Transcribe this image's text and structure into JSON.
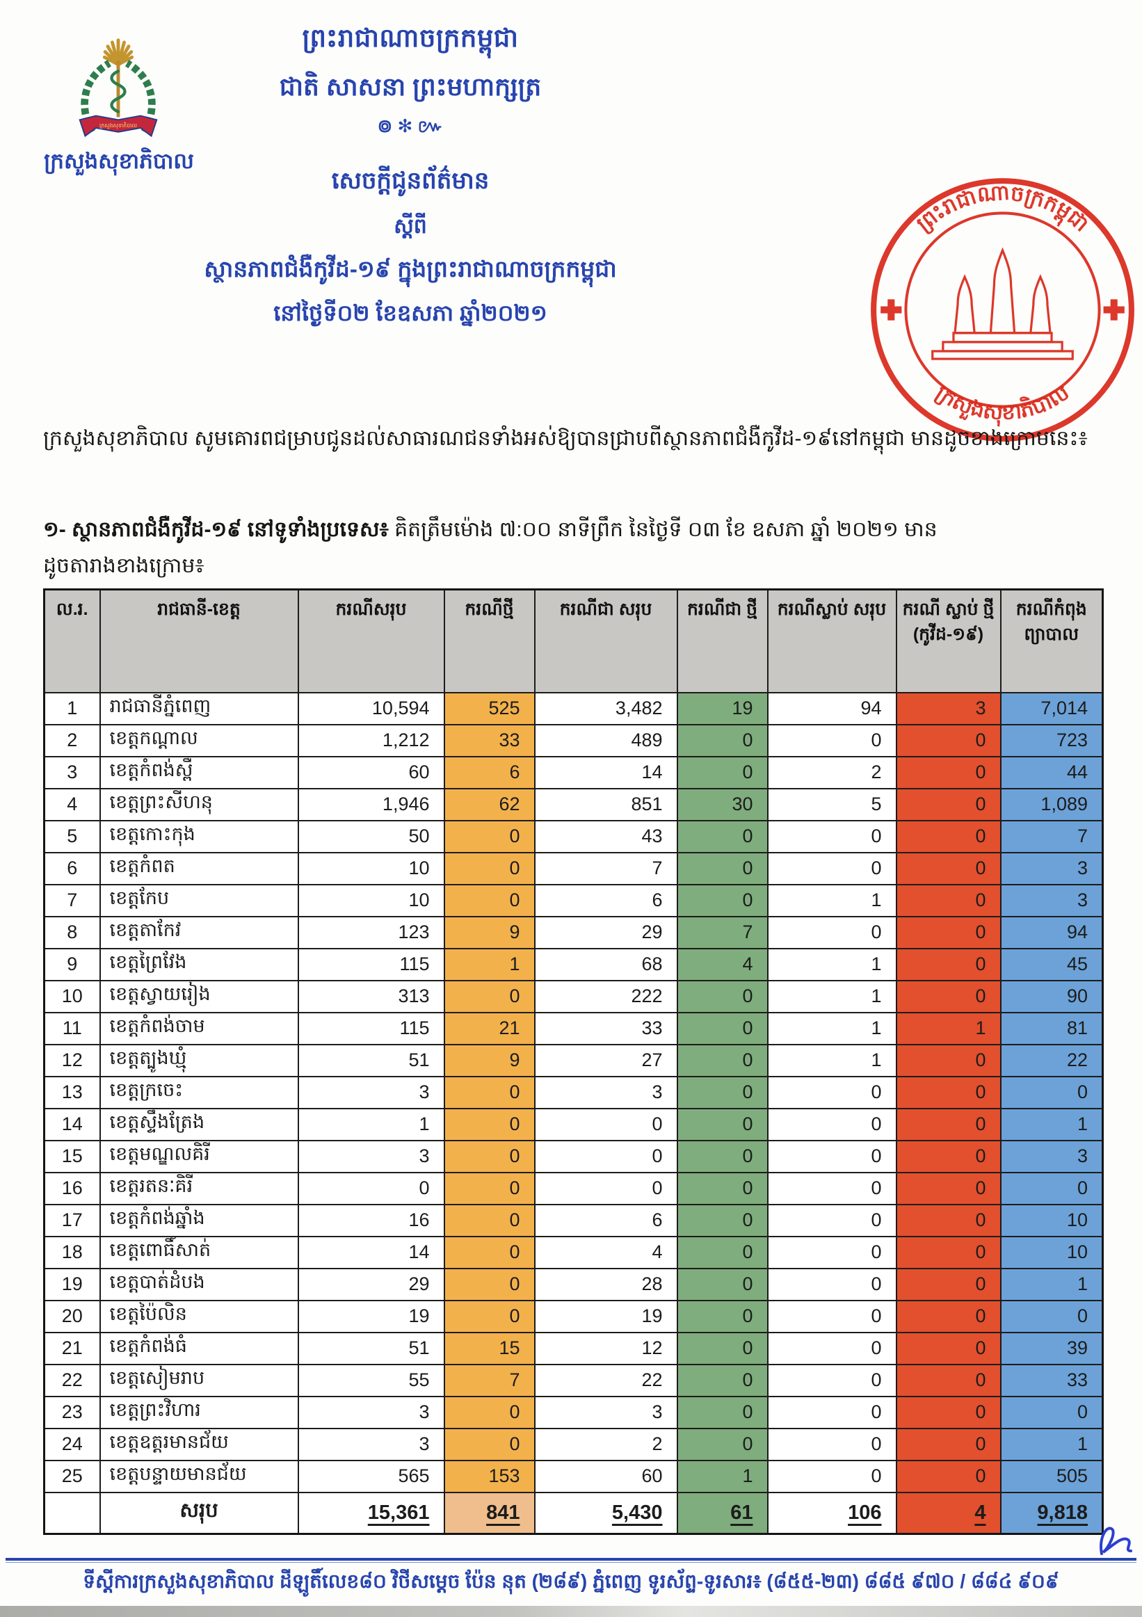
{
  "document": {
    "kingdom_motto_line1": "ព្រះរាជាណាចក្រកម្ពុជា",
    "kingdom_motto_line2": "ជាតិ សាសនា ព្រះមហាក្សត្រ",
    "motto_ornament": "៙ ✻ ៚",
    "ministry_name": "ក្រសួងសុខាភិបាល",
    "title_line1": "សេចក្ដីជូនព័ត៌មាន",
    "title_line2": "ស្ដីពី",
    "title_line3": "ស្ថានភាពជំងឺកូវីដ-១៩ ក្នុងព្រះរាជាណាចក្រកម្ពុជា",
    "title_line4": "នៅថ្ងៃទី០២ ខែឧសភា ឆ្នាំ២០២១"
  },
  "logo": {
    "banner_text": "ក្រសួងសុខាភិបាល"
  },
  "stamp": {
    "top_text": "ព្រះរាជាណាចក្រកម្ពុជា",
    "bottom_text": "ក្រសួងសុខាភិបាល",
    "color": "#DA2A1C"
  },
  "intro": {
    "paragraph": "ក្រសួងសុខាភិបាល សូមគោរពជម្រាបជូនដល់សាធារណជនទាំងអស់ឱ្យបានជ្រាបពីស្ថានភាពជំងឺកូវីដ-១៩នៅកម្ពុជា មានដូចខាងក្រោមនេះ៖",
    "section_no_label": "១- ស្ថានភាពជំងឺកូវីដ-១៩ នៅទូទាំងប្រទេស៖",
    "section_rest": " គិតត្រឹមម៉ោង ៧:០០ នាទីព្រឹក នៃថ្ងៃទី ០៣ ខែ ឧសភា ឆ្នាំ ២០២១ មាន",
    "section_line2": "ដូចតារាងខាងក្រោម៖"
  },
  "table": {
    "headers": {
      "no": "ល.រ.",
      "province": "រាជធានី-ខេត្ត",
      "total_cases": "ករណីសរុប",
      "new_cases": "ករណីថ្មី",
      "recovered_total": "ករណីជា សរុប",
      "recovered_new": "ករណីជា ថ្មី",
      "deaths_total": "ករណីស្លាប់ សរុប",
      "deaths_new": "ករណី ស្លាប់ ថ្មី (កូវីដ-១៩)",
      "in_treatment": "ករណីកំពុង ព្យាបាល"
    },
    "rows": [
      {
        "no": "1",
        "province": "រាជធានីភ្នំពេញ",
        "total_cases": "10,594",
        "new_cases": "525",
        "recovered_total": "3,482",
        "recovered_new": "19",
        "deaths_total": "94",
        "deaths_new": "3",
        "in_treatment": "7,014"
      },
      {
        "no": "2",
        "province": "ខេត្តកណ្ដាល",
        "total_cases": "1,212",
        "new_cases": "33",
        "recovered_total": "489",
        "recovered_new": "0",
        "deaths_total": "0",
        "deaths_new": "0",
        "in_treatment": "723"
      },
      {
        "no": "3",
        "province": "ខេត្តកំពង់ស្ពឺ",
        "total_cases": "60",
        "new_cases": "6",
        "recovered_total": "14",
        "recovered_new": "0",
        "deaths_total": "2",
        "deaths_new": "0",
        "in_treatment": "44"
      },
      {
        "no": "4",
        "province": "ខេត្តព្រះសីហនុ",
        "total_cases": "1,946",
        "new_cases": "62",
        "recovered_total": "851",
        "recovered_new": "30",
        "deaths_total": "5",
        "deaths_new": "0",
        "in_treatment": "1,089"
      },
      {
        "no": "5",
        "province": "ខេត្តកោះកុង",
        "total_cases": "50",
        "new_cases": "0",
        "recovered_total": "43",
        "recovered_new": "0",
        "deaths_total": "0",
        "deaths_new": "0",
        "in_treatment": "7"
      },
      {
        "no": "6",
        "province": "ខេត្តកំពត",
        "total_cases": "10",
        "new_cases": "0",
        "recovered_total": "7",
        "recovered_new": "0",
        "deaths_total": "0",
        "deaths_new": "0",
        "in_treatment": "3"
      },
      {
        "no": "7",
        "province": "ខេត្តកែប",
        "total_cases": "10",
        "new_cases": "0",
        "recovered_total": "6",
        "recovered_new": "0",
        "deaths_total": "1",
        "deaths_new": "0",
        "in_treatment": "3"
      },
      {
        "no": "8",
        "province": "ខេត្តតាកែវ",
        "total_cases": "123",
        "new_cases": "9",
        "recovered_total": "29",
        "recovered_new": "7",
        "deaths_total": "0",
        "deaths_new": "0",
        "in_treatment": "94"
      },
      {
        "no": "9",
        "province": "ខេត្តព្រៃវែង",
        "total_cases": "115",
        "new_cases": "1",
        "recovered_total": "68",
        "recovered_new": "4",
        "deaths_total": "1",
        "deaths_new": "0",
        "in_treatment": "45"
      },
      {
        "no": "10",
        "province": "ខេត្តស្វាយរៀង",
        "total_cases": "313",
        "new_cases": "0",
        "recovered_total": "222",
        "recovered_new": "0",
        "deaths_total": "1",
        "deaths_new": "0",
        "in_treatment": "90"
      },
      {
        "no": "11",
        "province": "ខេត្តកំពង់ចាម",
        "total_cases": "115",
        "new_cases": "21",
        "recovered_total": "33",
        "recovered_new": "0",
        "deaths_total": "1",
        "deaths_new": "1",
        "in_treatment": "81"
      },
      {
        "no": "12",
        "province": "ខេត្តត្បូងឃ្មុំ",
        "total_cases": "51",
        "new_cases": "9",
        "recovered_total": "27",
        "recovered_new": "0",
        "deaths_total": "1",
        "deaths_new": "0",
        "in_treatment": "22"
      },
      {
        "no": "13",
        "province": "ខេត្តក្រចេះ",
        "total_cases": "3",
        "new_cases": "0",
        "recovered_total": "3",
        "recovered_new": "0",
        "deaths_total": "0",
        "deaths_new": "0",
        "in_treatment": "0"
      },
      {
        "no": "14",
        "province": "ខេត្តស្ទឹងត្រែង",
        "total_cases": "1",
        "new_cases": "0",
        "recovered_total": "0",
        "recovered_new": "0",
        "deaths_total": "0",
        "deaths_new": "0",
        "in_treatment": "1"
      },
      {
        "no": "15",
        "province": "ខេត្តមណ្ឌលគិរី",
        "total_cases": "3",
        "new_cases": "0",
        "recovered_total": "0",
        "recovered_new": "0",
        "deaths_total": "0",
        "deaths_new": "0",
        "in_treatment": "3"
      },
      {
        "no": "16",
        "province": "ខេត្តរតនៈគិរី",
        "total_cases": "0",
        "new_cases": "0",
        "recovered_total": "0",
        "recovered_new": "0",
        "deaths_total": "0",
        "deaths_new": "0",
        "in_treatment": "0"
      },
      {
        "no": "17",
        "province": "ខេត្តកំពង់ឆ្នាំង",
        "total_cases": "16",
        "new_cases": "0",
        "recovered_total": "6",
        "recovered_new": "0",
        "deaths_total": "0",
        "deaths_new": "0",
        "in_treatment": "10"
      },
      {
        "no": "18",
        "province": "ខេត្តពោធិ៍សាត់",
        "total_cases": "14",
        "new_cases": "0",
        "recovered_total": "4",
        "recovered_new": "0",
        "deaths_total": "0",
        "deaths_new": "0",
        "in_treatment": "10"
      },
      {
        "no": "19",
        "province": "ខេត្តបាត់ដំបង",
        "total_cases": "29",
        "new_cases": "0",
        "recovered_total": "28",
        "recovered_new": "0",
        "deaths_total": "0",
        "deaths_new": "0",
        "in_treatment": "1"
      },
      {
        "no": "20",
        "province": "ខេត្តប៉ៃលិន",
        "total_cases": "19",
        "new_cases": "0",
        "recovered_total": "19",
        "recovered_new": "0",
        "deaths_total": "0",
        "deaths_new": "0",
        "in_treatment": "0"
      },
      {
        "no": "21",
        "province": "ខេត្តកំពង់ធំ",
        "total_cases": "51",
        "new_cases": "15",
        "recovered_total": "12",
        "recovered_new": "0",
        "deaths_total": "0",
        "deaths_new": "0",
        "in_treatment": "39"
      },
      {
        "no": "22",
        "province": "ខេត្តសៀមរាប",
        "total_cases": "55",
        "new_cases": "7",
        "recovered_total": "22",
        "recovered_new": "0",
        "deaths_total": "0",
        "deaths_new": "0",
        "in_treatment": "33"
      },
      {
        "no": "23",
        "province": "ខេត្តព្រះវិហារ",
        "total_cases": "3",
        "new_cases": "0",
        "recovered_total": "3",
        "recovered_new": "0",
        "deaths_total": "0",
        "deaths_new": "0",
        "in_treatment": "0"
      },
      {
        "no": "24",
        "province": "ខេត្តឧត្តរមានជ័យ",
        "total_cases": "3",
        "new_cases": "0",
        "recovered_total": "2",
        "recovered_new": "0",
        "deaths_total": "0",
        "deaths_new": "0",
        "in_treatment": "1"
      },
      {
        "no": "25",
        "province": "ខេត្តបន្ទាយមានជ័យ",
        "total_cases": "565",
        "new_cases": "153",
        "recovered_total": "60",
        "recovered_new": "1",
        "deaths_total": "0",
        "deaths_new": "0",
        "in_treatment": "505"
      }
    ],
    "total": {
      "label": "សរុប",
      "total_cases": "15,361",
      "new_cases": "841",
      "recovered_total": "5,430",
      "recovered_new": "61",
      "deaths_total": "106",
      "deaths_new": "4",
      "in_treatment": "9,818"
    }
  },
  "footer": {
    "text": "ទីស្ដីការក្រសួងសុខាភិបាល ដីឡូតិ៍លេខ៨០ វិថីសម្ដេច ប៉ែន នុត (២៨៩) ភ្នំពេញ ទូរស័ព្ទ-ទូរសារ៖ (៨៥៥-២៣) ៨៨៥ ៩៧០ / ៨៨៤ ៩០៩"
  },
  "colors": {
    "accent_blue": "#2744AE",
    "header_gray": "#C8C7C4",
    "new_cases_col": "#F3B14C",
    "recovered_new_col": "#7FAD7D",
    "deaths_new_col": "#E2502D",
    "in_treatment_col": "#6CA2D8",
    "stamp_red": "#DA2A1C"
  }
}
